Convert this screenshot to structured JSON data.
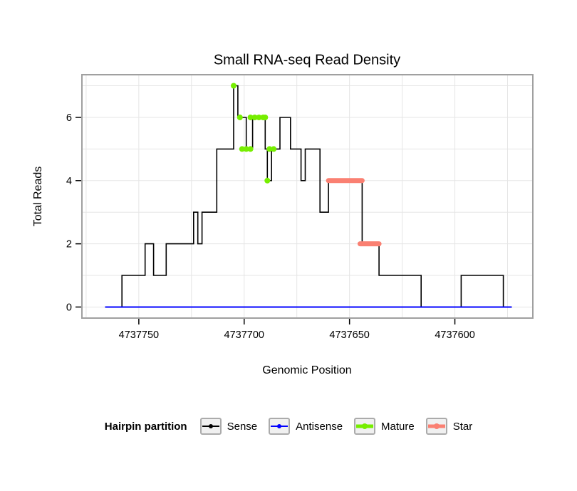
{
  "chart_data": {
    "type": "line",
    "title": "Small RNA-seq Read Density",
    "xlabel": "Genomic Position",
    "ylabel": "Total Reads",
    "background": "#FFFFFF",
    "panel": {
      "border_color": "#A0A0A0",
      "grid_color": "#E5E5E5",
      "x_grid_step": 25,
      "y_grid_step": 1
    },
    "x_axis": {
      "reversed": true,
      "min": 4737563,
      "max": 4737777,
      "ticks": [
        4737750,
        4737700,
        4737650,
        4737600
      ]
    },
    "y_axis": {
      "min": -0.35,
      "max": 7.35,
      "ticks": [
        0,
        2,
        4,
        6
      ]
    },
    "series": [
      {
        "name": "Sense",
        "type": "step",
        "color": "#000000",
        "line_width": 1.6,
        "steps": [
          [
            4737766,
            0
          ],
          [
            4737758,
            1
          ],
          [
            4737747,
            2
          ],
          [
            4737743,
            1
          ],
          [
            4737737,
            2
          ],
          [
            4737724,
            3
          ],
          [
            4737722,
            2
          ],
          [
            4737720,
            3
          ],
          [
            4737713,
            5
          ],
          [
            4737705,
            7
          ],
          [
            4737703,
            6
          ],
          [
            4737699,
            5
          ],
          [
            4737696,
            6
          ],
          [
            4737690,
            5
          ],
          [
            4737689,
            4
          ],
          [
            4737687,
            5
          ],
          [
            4737683,
            6
          ],
          [
            4737678,
            5
          ],
          [
            4737673,
            4
          ],
          [
            4737671,
            5
          ],
          [
            4737664,
            3
          ],
          [
            4737660,
            4
          ],
          [
            4737644,
            2
          ],
          [
            4737636,
            1
          ],
          [
            4737616,
            0
          ],
          [
            4737597,
            1
          ],
          [
            4737577,
            0
          ],
          [
            4737573,
            0
          ]
        ]
      },
      {
        "name": "Antisense",
        "type": "line",
        "color": "#0000FF",
        "line_width": 2,
        "points": [
          [
            4737766,
            0
          ],
          [
            4737573,
            0
          ]
        ]
      },
      {
        "name": "Mature",
        "type": "points",
        "color": "#76EE00",
        "radius": 4,
        "points": [
          [
            4737705,
            7
          ],
          [
            4737702,
            6
          ],
          [
            4737697,
            6
          ],
          [
            4737695,
            6
          ],
          [
            4737693,
            6
          ],
          [
            4737691,
            6
          ],
          [
            4737690,
            6
          ],
          [
            4737701,
            5
          ],
          [
            4737699,
            5
          ],
          [
            4737697,
            5
          ],
          [
            4737688,
            5
          ],
          [
            4737686,
            5
          ],
          [
            4737689,
            4
          ]
        ]
      },
      {
        "name": "Star",
        "type": "segments",
        "color": "#FA8072",
        "line_width": 7,
        "segments": [
          [
            [
              4737660,
              4
            ],
            [
              4737644,
              4
            ]
          ],
          [
            [
              4737645,
              2
            ],
            [
              4737636,
              2
            ]
          ]
        ]
      }
    ],
    "legend": {
      "title": "Hairpin partition",
      "position": "bottom",
      "key_box": {
        "fill": "#F0F0F0",
        "border": "#ABABAB"
      },
      "entries": [
        {
          "label": "Sense",
          "color": "#000000",
          "line_width": 2,
          "dot_radius": 3
        },
        {
          "label": "Antisense",
          "color": "#0000FF",
          "line_width": 2,
          "dot_radius": 3
        },
        {
          "label": "Mature",
          "color": "#76EE00",
          "line_width": 5,
          "dot_radius": 4
        },
        {
          "label": "Star",
          "color": "#FA8072",
          "line_width": 5,
          "dot_radius": 4
        }
      ]
    }
  }
}
